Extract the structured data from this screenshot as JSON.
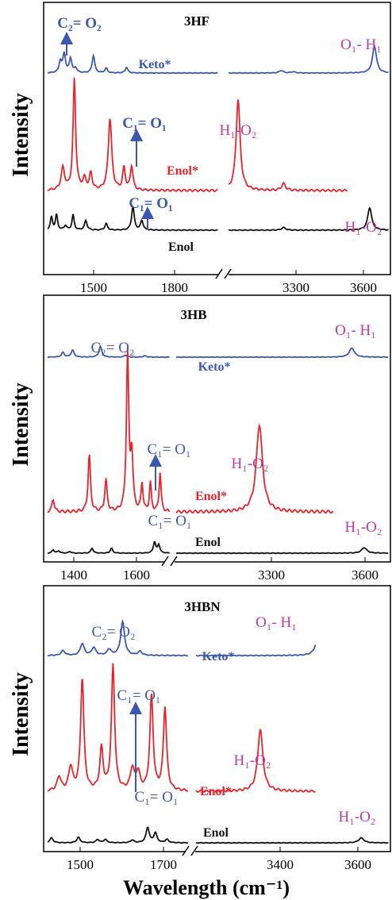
{
  "figure": {
    "xlabel": "Wavelength (cm⁻¹)",
    "ylabel": "Intensity"
  },
  "colors": {
    "keto": "#3c57b0",
    "enol_star": "#e8232b",
    "enol": "#111111",
    "annotation_blue": "#3c57b0",
    "annotation_pink": "#c13a9e"
  },
  "chart_data": [
    {
      "type": "line",
      "title": "3HF",
      "ylabel": "Intensity",
      "xticks_left": [
        1500,
        1800
      ],
      "xticks_right": [
        3300,
        3600
      ],
      "xlim_left": [
        1330,
        2000
      ],
      "xlim_right": [
        2980,
        3650
      ],
      "series": [
        {
          "name": "Keto*",
          "peaks_left": [
            [
              1380,
              0.35,
              6
            ],
            [
              1395,
              0.6,
              6
            ],
            [
              1420,
              0.45,
              6
            ],
            [
              1440,
              0.15,
              6
            ],
            [
              1510,
              0.55,
              6
            ],
            [
              1560,
              0.15,
              6
            ],
            [
              1640,
              0.18,
              6
            ]
          ],
          "peaks_right": [
            [
              3200,
              0.08,
              10
            ],
            [
              3250,
              0.04,
              10
            ],
            [
              3590,
              0.85,
              10
            ]
          ]
        },
        {
          "name": "Enol*",
          "peaks_left": [
            [
              1390,
              0.2,
              8
            ],
            [
              1435,
              1.0,
              6
            ],
            [
              1475,
              0.1,
              8
            ],
            [
              1500,
              0.15,
              6
            ],
            [
              1575,
              0.65,
              8
            ],
            [
              1630,
              0.2,
              6
            ],
            [
              1660,
              0.22,
              6
            ]
          ],
          "peaks_right": [
            [
              3020,
              0.82,
              10
            ],
            [
              3210,
              0.06,
              10
            ]
          ]
        },
        {
          "name": "Enol",
          "peaks_left": [
            [
              1345,
              0.3,
              5
            ],
            [
              1365,
              0.35,
              5
            ],
            [
              1400,
              0.1,
              6
            ],
            [
              1430,
              0.35,
              5
            ],
            [
              1480,
              0.22,
              6
            ],
            [
              1560,
              0.15,
              6
            ],
            [
              1665,
              0.55,
              6
            ],
            [
              1700,
              0.22,
              6
            ]
          ],
          "peaks_right": [
            [
              3210,
              0.06,
              10
            ],
            [
              3570,
              0.52,
              10
            ]
          ]
        }
      ],
      "annotations": [
        "C₂= O₂",
        "C₁= O₁",
        "C₁= O₁",
        "O₁- H₁",
        "H₁-O₂",
        "H₁-O₂"
      ]
    },
    {
      "type": "line",
      "title": "3HB",
      "ylabel": "Intensity",
      "xticks_left": [
        1400,
        1600
      ],
      "xticks_right": [
        3300,
        3600
      ],
      "xlim_left": [
        1300,
        1740
      ],
      "xlim_right": [
        2990,
        3680
      ],
      "series": [
        {
          "name": "Keto*",
          "peaks_left": [
            [
              1355,
              0.2,
              6
            ],
            [
              1390,
              0.3,
              6
            ],
            [
              1490,
              0.45,
              6
            ],
            [
              1580,
              0.08,
              6
            ],
            [
              1650,
              0.06,
              6
            ]
          ],
          "peaks_right": [
            [
              3560,
              0.38,
              10
            ]
          ]
        },
        {
          "name": "Enol*",
          "peaks_left": [
            [
              1320,
              0.08,
              5
            ],
            [
              1450,
              0.36,
              5
            ],
            [
              1510,
              0.2,
              5
            ],
            [
              1588,
              1.0,
              5
            ],
            [
              1603,
              0.35,
              5
            ],
            [
              1640,
              0.18,
              4
            ],
            [
              1670,
              0.18,
              4
            ],
            [
              1705,
              0.25,
              4
            ]
          ],
          "peaks_right": [
            [
              3260,
              0.55,
              12
            ]
          ]
        },
        {
          "name": "Enol",
          "peaks_left": [
            [
              1320,
              0.12,
              5
            ],
            [
              1340,
              0.08,
              5
            ],
            [
              1380,
              0.06,
              5
            ],
            [
              1460,
              0.18,
              5
            ],
            [
              1530,
              0.18,
              5
            ],
            [
              1685,
              0.4,
              5
            ],
            [
              1700,
              0.3,
              5
            ]
          ],
          "peaks_right": [
            [
              3600,
              0.2,
              10
            ]
          ]
        }
      ],
      "annotations": [
        "C₂= O₂",
        "C₁= O₁",
        "C₁= O₁",
        "O₁- H₁",
        "H₁-O₂",
        "H₁-O₂"
      ]
    },
    {
      "type": "line",
      "title": "3HBN",
      "ylabel": "Intensity",
      "xticks_left": [
        1500,
        1700
      ],
      "xticks_right": [
        3400,
        3600
      ],
      "xlim_left": [
        1380,
        1745
      ],
      "xlim_right": [
        3060,
        3690
      ],
      "series": [
        {
          "name": "Keto*",
          "peaks_left": [
            [
              1420,
              0.12,
              6
            ],
            [
              1470,
              0.3,
              6
            ],
            [
              1500,
              0.2,
              6
            ],
            [
              1540,
              0.15,
              6
            ],
            [
              1575,
              0.85,
              6
            ],
            [
              1620,
              0.1,
              6
            ]
          ],
          "peaks_right": [
            [
              3460,
              0.55,
              10
            ]
          ]
        },
        {
          "name": "Enol*",
          "peaks_left": [
            [
              1410,
              0.12,
              6
            ],
            [
              1440,
              0.2,
              6
            ],
            [
              1470,
              0.95,
              5
            ],
            [
              1520,
              0.35,
              5
            ],
            [
              1550,
              1.05,
              5
            ],
            [
              1600,
              0.18,
              6
            ],
            [
              1615,
              0.15,
              6
            ],
            [
              1650,
              0.8,
              5
            ],
            [
              1685,
              0.7,
              5
            ]
          ],
          "peaks_right": [
            [
              3270,
              0.52,
              10
            ]
          ]
        },
        {
          "name": "Enol",
          "peaks_left": [
            [
              1390,
              0.18,
              5
            ],
            [
              1460,
              0.2,
              5
            ],
            [
              1510,
              0.12,
              5
            ],
            [
              1530,
              0.12,
              5
            ],
            [
              1600,
              0.1,
              5
            ],
            [
              1640,
              0.55,
              5
            ],
            [
              1660,
              0.35,
              5
            ],
            [
              1690,
              0.12,
              5
            ]
          ],
          "peaks_right": [
            [
              3600,
              0.18,
              10
            ]
          ]
        }
      ],
      "annotations": [
        "C₂= O₂",
        "C₁= O₁",
        "C₁= O₁",
        "O₁- H₁",
        "H₁-O₂",
        "H₁-O₂"
      ]
    }
  ]
}
